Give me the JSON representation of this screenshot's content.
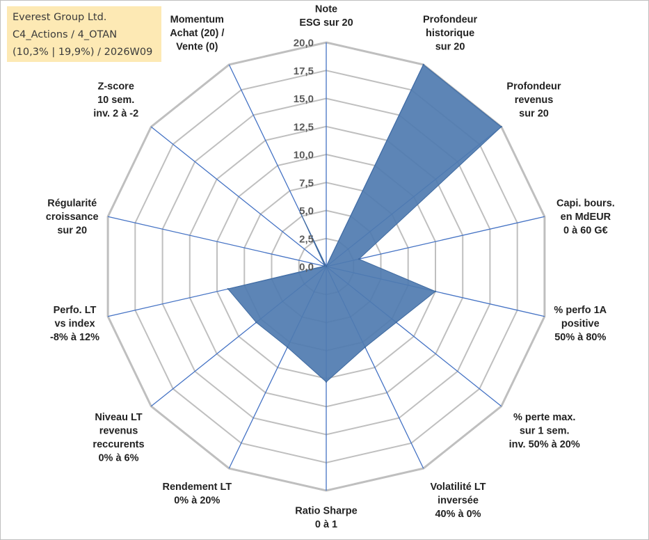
{
  "header": {
    "line1": "Everest Group Ltd.",
    "line2": "C4_Actions / 4_OTAN",
    "line3": "(10,3% | 19,9%) / 2026W09"
  },
  "chart_data": {
    "type": "radar",
    "title": "",
    "rmin": 0,
    "rmax": 20,
    "ticks": [
      "0,0",
      "2,5",
      "5,0",
      "7,5",
      "10,0",
      "12,5",
      "15,0",
      "17,5",
      "20,0"
    ],
    "categories": [
      [
        "Note",
        "ESG sur 20"
      ],
      [
        "Profondeur",
        "historique",
        "sur 20"
      ],
      [
        "Profondeur",
        "revenus",
        "sur 20"
      ],
      [
        "Capi. bours.",
        "en MdEUR",
        "0 à 60 G€"
      ],
      [
        "% perfo 1A",
        "positive",
        "50% à 80%"
      ],
      [
        "% perte max.",
        "sur 1 sem.",
        "inv. 50% à 20%"
      ],
      [
        "Volatilité LT",
        "inversée",
        "40% à 0%"
      ],
      [
        "Ratio Sharpe",
        "0 à 1"
      ],
      [
        "Rendement LT",
        "0% à 20%"
      ],
      [
        "Niveau LT",
        "revenus",
        "reccurents",
        "0% à 6%"
      ],
      [
        "Perfo. LT",
        "vs index",
        "-8% à 12%"
      ],
      [
        "Régularité",
        "croissance",
        "sur 20"
      ],
      [
        "Z-score",
        "10 sem.",
        "inv. 2 à -2"
      ],
      [
        "Momentum",
        "Achat (20) /",
        "Vente (0)"
      ]
    ],
    "series": [
      {
        "values": [
          0,
          20,
          20,
          3,
          10,
          8,
          8,
          10.3,
          8,
          8,
          9,
          0.2,
          0.2,
          5.3
        ],
        "color": "#4f7bb0"
      }
    ],
    "grid": true,
    "grid_color": "#bfbfbf",
    "spoke_color": "#4472c4"
  }
}
